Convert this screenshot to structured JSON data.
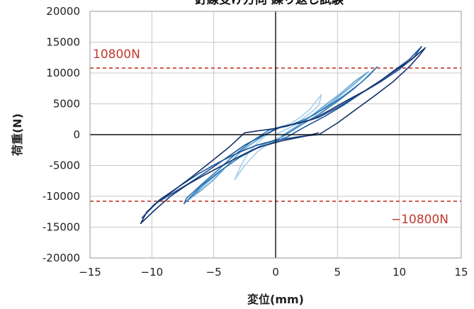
{
  "chart_data": {
    "type": "line",
    "title": "釘線受け方向 繰り返し試験",
    "xlabel": "変位(mm)",
    "ylabel": "荷重(N)",
    "xlim": [
      -15,
      15
    ],
    "ylim": [
      -20000,
      20000
    ],
    "x_ticks": [
      -15,
      -10,
      -5,
      0,
      5,
      10,
      15
    ],
    "x_tick_labels": [
      "−15",
      "−10",
      "−5",
      "0",
      "5",
      "10",
      "15"
    ],
    "y_ticks": [
      -20000,
      -15000,
      -10000,
      -5000,
      0,
      5000,
      10000,
      15000,
      20000
    ],
    "y_tick_labels": [
      "-20000",
      "-15000",
      "-10000",
      "-5000",
      "0",
      "5000",
      "10000",
      "15000",
      "20000"
    ],
    "grid": true,
    "colors": {
      "grid": "#c8c8c8",
      "axes": "#111111",
      "ref_line": "#c0392b"
    },
    "reference_lines": [
      {
        "y": 10800,
        "label": "10800N",
        "label_position": "top-left"
      },
      {
        "y": -10800,
        "label": "−10800N",
        "label_position": "bottom-right"
      }
    ],
    "series": [
      {
        "color": "#a9cfe8",
        "points": [
          [
            0,
            0
          ],
          [
            0.8,
            800
          ],
          [
            1.5,
            1500
          ],
          [
            2.2,
            2600
          ],
          [
            3,
            3800
          ],
          [
            3.5,
            4800
          ],
          [
            3.7,
            6500
          ],
          [
            2.8,
            4200
          ],
          [
            2,
            2800
          ],
          [
            1.2,
            1800
          ],
          [
            0,
            900
          ],
          [
            -0.8,
            -200
          ],
          [
            -1.5,
            -1400
          ],
          [
            -2.2,
            -2900
          ],
          [
            -2.8,
            -5000
          ],
          [
            -3.3,
            -7300
          ],
          [
            -2.5,
            -5000
          ],
          [
            -1.5,
            -2800
          ],
          [
            -0.5,
            -1400
          ],
          [
            0.5,
            -200
          ]
        ]
      },
      {
        "color": "#5fa3d4",
        "points": [
          [
            0.5,
            -200
          ],
          [
            1.6,
            1200
          ],
          [
            2.8,
            2900
          ],
          [
            4,
            4800
          ],
          [
            5.2,
            6600
          ],
          [
            6.5,
            8800
          ],
          [
            7.5,
            10200
          ],
          [
            6,
            7600
          ],
          [
            4.5,
            5200
          ],
          [
            3.2,
            3300
          ],
          [
            1.8,
            1900
          ],
          [
            0,
            1100
          ],
          [
            -1.5,
            -900
          ],
          [
            -2.8,
            -2700
          ],
          [
            -4,
            -5200
          ],
          [
            -5,
            -7300
          ],
          [
            -6,
            -9000
          ],
          [
            -7,
            -10500
          ],
          [
            -5.5,
            -7700
          ],
          [
            -4,
            -5200
          ],
          [
            -2.5,
            -3100
          ],
          [
            -1,
            -1600
          ],
          [
            0.5,
            -400
          ]
        ]
      },
      {
        "color": "#2f77b4",
        "points": [
          [
            0.5,
            -400
          ],
          [
            2,
            1500
          ],
          [
            3.5,
            3300
          ],
          [
            5,
            5400
          ],
          [
            6.3,
            7400
          ],
          [
            7.5,
            9500
          ],
          [
            8.2,
            11000
          ],
          [
            7,
            8600
          ],
          [
            5.5,
            6300
          ],
          [
            4,
            4300
          ],
          [
            2.5,
            2600
          ],
          [
            1,
            1400
          ],
          [
            -0.5,
            800
          ],
          [
            -2,
            -1200
          ],
          [
            -3.5,
            -3600
          ],
          [
            -4.8,
            -6000
          ],
          [
            -6,
            -8100
          ],
          [
            -7.2,
            -10300
          ],
          [
            -7.4,
            -11200
          ],
          [
            -6,
            -8300
          ],
          [
            -4.5,
            -5900
          ],
          [
            -3,
            -3800
          ],
          [
            -1.5,
            -2200
          ],
          [
            0,
            -1100
          ],
          [
            1,
            -300
          ]
        ]
      },
      {
        "color": "#1d5596",
        "points": [
          [
            1,
            -300
          ],
          [
            2.4,
            1300
          ],
          [
            4,
            3000
          ],
          [
            5.5,
            4800
          ],
          [
            7,
            6800
          ],
          [
            8.5,
            8600
          ],
          [
            10,
            10600
          ],
          [
            11.2,
            12600
          ],
          [
            11.8,
            14300
          ],
          [
            10.8,
            12200
          ],
          [
            9.5,
            10300
          ],
          [
            8,
            8000
          ],
          [
            6.5,
            6200
          ],
          [
            5,
            4400
          ],
          [
            3.5,
            2800
          ],
          [
            2,
            1900
          ],
          [
            0.5,
            1300
          ],
          [
            -1,
            -100
          ],
          [
            -2.5,
            -1700
          ],
          [
            -4,
            -3800
          ],
          [
            -5.5,
            -5900
          ],
          [
            -7,
            -7900
          ],
          [
            -8.5,
            -9700
          ],
          [
            -9.8,
            -11300
          ],
          [
            -10.8,
            -13500
          ],
          [
            -9.4,
            -10600
          ],
          [
            -7.8,
            -8400
          ],
          [
            -6.2,
            -6300
          ],
          [
            -4.6,
            -4500
          ],
          [
            -3,
            -2900
          ],
          [
            -1.5,
            -1700
          ],
          [
            0,
            -900
          ],
          [
            2,
            -300
          ],
          [
            3.5,
            0
          ]
        ]
      },
      {
        "color": "#14306b",
        "points": [
          [
            3.5,
            0
          ],
          [
            5,
            1900
          ],
          [
            6.5,
            4100
          ],
          [
            8,
            6300
          ],
          [
            9.5,
            8600
          ],
          [
            10.8,
            11000
          ],
          [
            11.6,
            12800
          ],
          [
            12.1,
            14100
          ],
          [
            11,
            12200
          ],
          [
            9.8,
            10600
          ],
          [
            8.5,
            8800
          ],
          [
            7.2,
            7100
          ],
          [
            5.8,
            5600
          ],
          [
            4.4,
            4000
          ],
          [
            3,
            2500
          ],
          [
            1.5,
            1700
          ],
          [
            0,
            1000
          ],
          [
            -1.5,
            600
          ],
          [
            -2.5,
            300
          ],
          [
            -3.8,
            -2100
          ],
          [
            -5.3,
            -4500
          ],
          [
            -6.8,
            -6900
          ],
          [
            -8.2,
            -9000
          ],
          [
            -9.5,
            -10900
          ],
          [
            -10.4,
            -12500
          ],
          [
            -10.9,
            -14400
          ],
          [
            -9.8,
            -12300
          ],
          [
            -8.5,
            -10000
          ],
          [
            -7.2,
            -8200
          ],
          [
            -5.8,
            -6600
          ],
          [
            -4.3,
            -5000
          ],
          [
            -2.8,
            -3400
          ],
          [
            -1.3,
            -2000
          ],
          [
            0.5,
            -1000
          ],
          [
            2.5,
            -200
          ],
          [
            3.5,
            300
          ]
        ]
      }
    ]
  }
}
